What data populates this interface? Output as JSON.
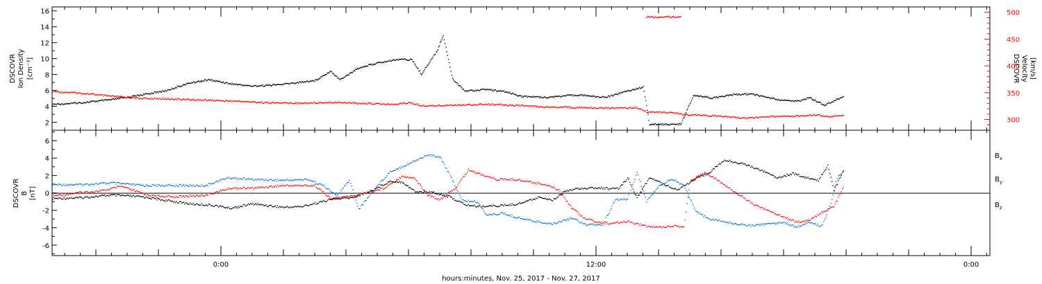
{
  "chart_data": [
    {
      "type": "scatter",
      "panel": "plasma",
      "ylabel_left": [
        "DSCOVR",
        "Ion Density",
        "[cm⁻³]"
      ],
      "ylabel_right": [
        "DSCOVR",
        "Velocity",
        "[km/s]"
      ],
      "ylim_left": [
        1,
        16.5
      ],
      "yticks_left": [
        2,
        4,
        6,
        8,
        10,
        12,
        14,
        16
      ],
      "ylim_right": [
        280,
        510
      ],
      "yticks_right": [
        300,
        350,
        400,
        450,
        500
      ],
      "series": [
        {
          "axis": "left",
          "color": "#000000",
          "points": [
            [
              -5.4,
              4.3
            ],
            [
              -4.5,
              4.5
            ],
            [
              -3.5,
              4.9
            ],
            [
              -2.7,
              5.4
            ],
            [
              -1.8,
              6.0
            ],
            [
              -1.0,
              7.0
            ],
            [
              -0.4,
              7.4
            ],
            [
              0.3,
              6.9
            ],
            [
              1.0,
              6.6
            ],
            [
              1.9,
              6.8
            ],
            [
              3.0,
              7.3
            ],
            [
              3.5,
              8.5
            ],
            [
              3.8,
              7.4
            ],
            [
              4.4,
              8.9
            ],
            [
              5.0,
              9.5
            ],
            [
              5.7,
              10.0
            ],
            [
              6.1,
              9.9
            ],
            [
              6.4,
              8.1
            ],
            [
              6.9,
              11.0
            ],
            [
              7.1,
              13.0
            ],
            [
              7.4,
              7.5
            ],
            [
              7.8,
              6.0
            ],
            [
              8.5,
              6.2
            ],
            [
              9.2,
              5.8
            ],
            [
              9.6,
              5.3
            ],
            [
              10.4,
              5.2
            ],
            [
              11.4,
              5.5
            ],
            [
              12.3,
              5.2
            ],
            [
              13.0,
              6.0
            ],
            [
              13.5,
              6.5
            ],
            [
              13.7,
              1.8
            ],
            [
              14.3,
              1.8
            ],
            [
              14.7,
              1.8
            ],
            [
              15.1,
              5.4
            ],
            [
              15.7,
              5.1
            ],
            [
              16.3,
              5.5
            ],
            [
              17.0,
              5.6
            ],
            [
              17.9,
              4.8
            ],
            [
              18.5,
              4.7
            ],
            [
              18.8,
              5.2
            ],
            [
              19.3,
              4.2
            ],
            [
              19.9,
              5.3
            ]
          ]
        },
        {
          "axis": "right",
          "color": "#ff0000",
          "points": [
            [
              -5.4,
              353
            ],
            [
              -4.5,
              350
            ],
            [
              -3.5,
              344
            ],
            [
              -2.5,
              340
            ],
            [
              -1.5,
              339
            ],
            [
              -0.5,
              337
            ],
            [
              0.5,
              335
            ],
            [
              1.5,
              332
            ],
            [
              2.5,
              331
            ],
            [
              3.5,
              333
            ],
            [
              4.5,
              331
            ],
            [
              5.5,
              329
            ],
            [
              6.0,
              332
            ],
            [
              6.5,
              326
            ],
            [
              7.5,
              328
            ],
            [
              8.5,
              329
            ],
            [
              9.5,
              327
            ],
            [
              10.5,
              324
            ],
            [
              11.5,
              323
            ],
            [
              12.5,
              322
            ],
            [
              13.3,
              323
            ],
            [
              13.6,
              315
            ],
            [
              14.4,
              314
            ],
            [
              14.8,
              310
            ],
            [
              15.5,
              308
            ],
            [
              16.0,
              307
            ],
            [
              16.7,
              303
            ],
            [
              17.5,
              306
            ],
            [
              18.5,
              307
            ],
            [
              19.0,
              310
            ],
            [
              19.4,
              306
            ],
            [
              19.9,
              309
            ]
          ]
        },
        {
          "axis": "right",
          "color": "#ff0000",
          "points": [
            [
              13.6,
              492
            ],
            [
              14.0,
              492
            ],
            [
              14.5,
              492
            ],
            [
              14.7,
              493
            ]
          ]
        }
      ]
    },
    {
      "type": "scatter",
      "panel": "magnetic-field",
      "ylabel_left": [
        "DSCOVR",
        "B",
        "[nT]"
      ],
      "ylim": [
        -7.2,
        7.2
      ],
      "yticks": [
        -6,
        -4,
        -2,
        0,
        2,
        4,
        6
      ],
      "zero_line": true,
      "legend": [
        {
          "label": "B",
          "sub": "x",
          "color": "#000000"
        },
        {
          "label": "B",
          "sub": "y",
          "color": "#0070dd"
        },
        {
          "label": "B",
          "sub": "z",
          "color": "#ff0000"
        }
      ],
      "series": [
        {
          "name": "Bx",
          "color": "#000000",
          "points": [
            [
              -5.4,
              -0.6
            ],
            [
              -4.5,
              -0.5
            ],
            [
              -3.5,
              -0.2
            ],
            [
              -2.5,
              -0.4
            ],
            [
              -1.8,
              -0.8
            ],
            [
              -1.0,
              -1.2
            ],
            [
              -0.2,
              -1.4
            ],
            [
              0.3,
              -1.7
            ],
            [
              1.0,
              -1.2
            ],
            [
              2.0,
              -1.6
            ],
            [
              2.6,
              -1.5
            ],
            [
              3.5,
              -0.7
            ],
            [
              4.2,
              -0.5
            ],
            [
              4.8,
              0.3
            ],
            [
              5.4,
              1.4
            ],
            [
              5.8,
              1.3
            ],
            [
              6.2,
              0.2
            ],
            [
              6.8,
              0.1
            ],
            [
              7.3,
              -0.4
            ],
            [
              7.8,
              -1.3
            ],
            [
              8.2,
              -1.5
            ],
            [
              9.0,
              -1.4
            ],
            [
              9.5,
              -1.2
            ],
            [
              10.2,
              -0.4
            ],
            [
              10.6,
              -0.8
            ],
            [
              11.0,
              0.3
            ],
            [
              11.5,
              0.6
            ],
            [
              12.2,
              0.6
            ],
            [
              12.7,
              0.5
            ],
            [
              13.0,
              1.8
            ],
            [
              13.3,
              -0.5
            ],
            [
              13.7,
              1.8
            ],
            [
              14.2,
              1.0
            ],
            [
              14.6,
              0.4
            ],
            [
              15.0,
              1.3
            ],
            [
              15.6,
              2.4
            ],
            [
              16.1,
              3.8
            ],
            [
              16.7,
              3.4
            ],
            [
              17.3,
              2.6
            ],
            [
              17.8,
              1.8
            ],
            [
              18.3,
              2.3
            ],
            [
              18.7,
              1.8
            ],
            [
              19.1,
              1.5
            ],
            [
              19.4,
              3.2
            ],
            [
              19.6,
              0.4
            ],
            [
              19.9,
              2.6
            ]
          ]
        },
        {
          "name": "By",
          "color": "#0070dd",
          "points": [
            [
              -5.4,
              1.0
            ],
            [
              -4.5,
              1.0
            ],
            [
              -3.5,
              1.2
            ],
            [
              -2.5,
              0.9
            ],
            [
              -1.5,
              0.9
            ],
            [
              -0.5,
              0.9
            ],
            [
              0.2,
              1.8
            ],
            [
              1.0,
              1.6
            ],
            [
              2.0,
              1.5
            ],
            [
              2.8,
              1.6
            ],
            [
              3.3,
              0.8
            ],
            [
              3.7,
              -0.3
            ],
            [
              4.1,
              1.5
            ],
            [
              4.4,
              -1.8
            ],
            [
              4.9,
              0.5
            ],
            [
              5.4,
              2.5
            ],
            [
              6.0,
              3.4
            ],
            [
              6.6,
              4.4
            ],
            [
              7.0,
              4.2
            ],
            [
              7.4,
              1.5
            ],
            [
              7.7,
              -0.8
            ],
            [
              8.2,
              -1.0
            ],
            [
              8.5,
              -2.5
            ],
            [
              9.0,
              -2.3
            ],
            [
              9.4,
              -2.7
            ],
            [
              10.0,
              -3.2
            ],
            [
              10.6,
              -3.5
            ],
            [
              11.2,
              -2.8
            ],
            [
              11.7,
              -3.6
            ],
            [
              12.2,
              -3.6
            ],
            [
              12.6,
              -0.8
            ],
            [
              13.0,
              -0.6
            ],
            [
              13.3,
              2.4
            ],
            [
              13.6,
              -0.9
            ],
            [
              14.0,
              0.8
            ],
            [
              14.4,
              1.7
            ],
            [
              14.8,
              0.9
            ],
            [
              15.2,
              -2.2
            ],
            [
              15.7,
              -3.0
            ],
            [
              16.3,
              -3.4
            ],
            [
              16.9,
              -3.7
            ],
            [
              17.5,
              -3.5
            ],
            [
              18.0,
              -3.3
            ],
            [
              18.4,
              -3.9
            ],
            [
              18.8,
              -3.3
            ],
            [
              19.2,
              -3.8
            ],
            [
              19.5,
              -1.2
            ],
            [
              19.7,
              1.8
            ],
            [
              19.9,
              2.5
            ]
          ]
        },
        {
          "name": "Bz",
          "color": "#ff0000",
          "points": [
            [
              -5.4,
              -0.3
            ],
            [
              -4.5,
              0.1
            ],
            [
              -3.8,
              0.3
            ],
            [
              -3.2,
              0.8
            ],
            [
              -2.8,
              0.3
            ],
            [
              -2.2,
              -0.3
            ],
            [
              -1.5,
              -0.4
            ],
            [
              -0.5,
              -0.2
            ],
            [
              0.3,
              0.6
            ],
            [
              1.0,
              0.6
            ],
            [
              2.0,
              0.9
            ],
            [
              3.0,
              0.9
            ],
            [
              3.5,
              -0.6
            ],
            [
              4.2,
              -0.3
            ],
            [
              4.8,
              0.2
            ],
            [
              5.2,
              0.6
            ],
            [
              5.8,
              2.0
            ],
            [
              6.2,
              1.7
            ],
            [
              6.6,
              -0.2
            ],
            [
              7.0,
              -0.7
            ],
            [
              7.5,
              0.6
            ],
            [
              7.9,
              2.7
            ],
            [
              8.3,
              2.2
            ],
            [
              8.8,
              1.6
            ],
            [
              9.4,
              1.6
            ],
            [
              9.9,
              1.3
            ],
            [
              10.4,
              1.0
            ],
            [
              10.8,
              0.4
            ],
            [
              11.2,
              -1.6
            ],
            [
              11.6,
              -2.8
            ],
            [
              12.0,
              -3.3
            ],
            [
              12.5,
              -3.5
            ],
            [
              13.0,
              -3.2
            ],
            [
              13.6,
              -3.8
            ],
            [
              14.0,
              -3.9
            ],
            [
              14.5,
              -3.7
            ],
            [
              14.8,
              -3.9
            ],
            [
              15.0,
              1.4
            ],
            [
              15.5,
              2.4
            ],
            [
              16.0,
              1.2
            ],
            [
              16.5,
              0.0
            ],
            [
              17.0,
              -1.2
            ],
            [
              17.5,
              -2.0
            ],
            [
              18.0,
              -2.7
            ],
            [
              18.4,
              -3.3
            ],
            [
              18.8,
              -3.1
            ],
            [
              19.3,
              -2.0
            ],
            [
              19.6,
              -1.5
            ],
            [
              19.9,
              0.7
            ]
          ]
        }
      ]
    }
  ],
  "x_axis": {
    "title": "hours:minutes, Nov. 25, 2017 - Nov. 27, 2017",
    "range_hours": [
      -5.4,
      24.6
    ],
    "labeled_ticks": [
      {
        "hours": 0,
        "label": "0:00"
      },
      {
        "hours": 12,
        "label": "12:00"
      },
      {
        "hours": 24,
        "label": "0:00"
      }
    ],
    "major_tick_every_hours": 2,
    "minor_tick_every_hours": 0.5
  }
}
